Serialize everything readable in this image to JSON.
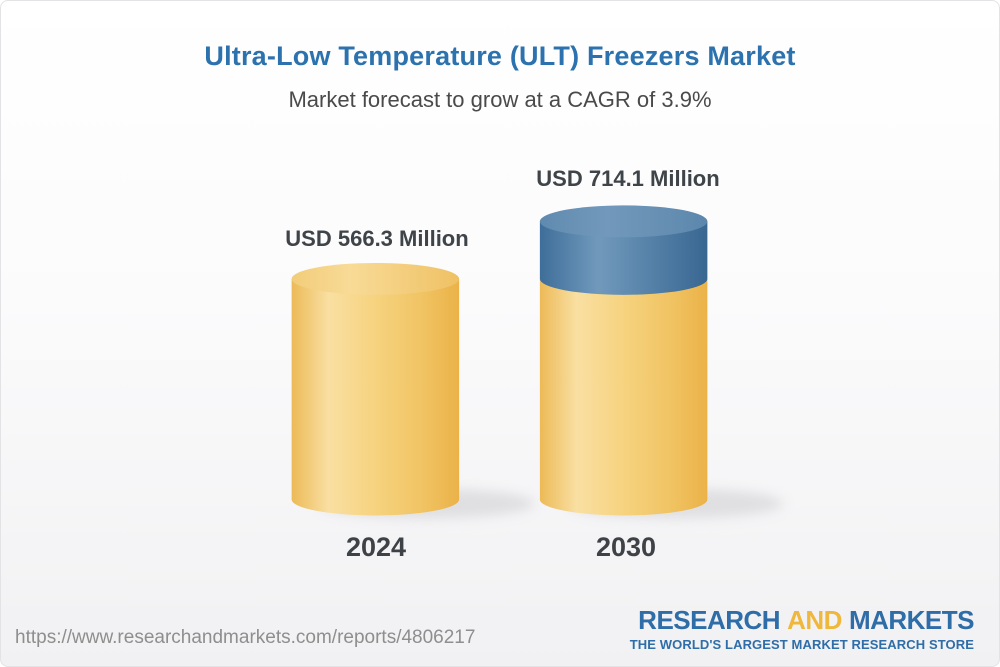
{
  "header": {
    "title": "Ultra-Low Temperature (ULT) Freezers Market",
    "subtitle": "Market forecast to grow at a CAGR of 3.9%"
  },
  "chart_data": {
    "type": "bar",
    "variant": "3d-cylinder",
    "categories": [
      "2024",
      "2030"
    ],
    "values": [
      566.3,
      714.1
    ],
    "value_labels": [
      "USD 566.3 Million",
      "USD 714.1 Million"
    ],
    "unit": "USD Million",
    "cagr_percent": 3.9,
    "title": "Ultra-Low Temperature (ULT) Freezers Market",
    "xlabel": "",
    "ylabel": "",
    "ylim": [
      0,
      714.1
    ],
    "grid": false,
    "legend": false,
    "colors": {
      "base_segment": "#f2c463",
      "growth_segment": "#56809f",
      "label_text": "#3f4449",
      "title_text": "#2c72ae"
    }
  },
  "footer": {
    "url": "https://www.researchandmarkets.com/reports/4806217",
    "logo": {
      "research": "RESEARCH",
      "and": "AND",
      "markets": "MARKETS",
      "tagline": "THE WORLD'S LARGEST MARKET RESEARCH STORE"
    }
  }
}
